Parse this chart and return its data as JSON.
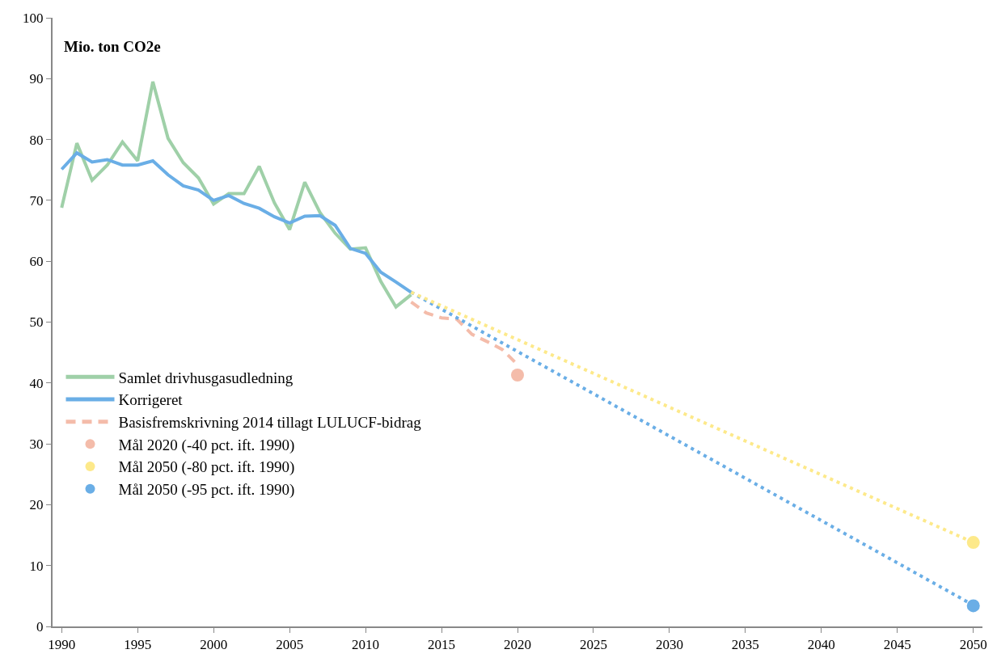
{
  "chart_data": {
    "type": "line",
    "ylabel": "Mio. ton CO2e",
    "xlim": [
      1989.4,
      2050.6
    ],
    "ylim": [
      0,
      100
    ],
    "xticks": [
      1990,
      1995,
      2000,
      2005,
      2010,
      2015,
      2020,
      2025,
      2030,
      2035,
      2040,
      2045,
      2050
    ],
    "yticks": [
      0,
      10,
      20,
      30,
      40,
      50,
      60,
      70,
      80,
      90,
      100
    ],
    "legend": "bottom left",
    "series": [
      {
        "name": "Samlet drivhusgasudledning",
        "line_style": "solid",
        "color": "#9fd0a8",
        "x": [
          1990,
          1991,
          1992,
          1993,
          1994,
          1995,
          1996,
          1997,
          1998,
          1999,
          2000,
          2001,
          2002,
          2003,
          2004,
          2005,
          2006,
          2007,
          2008,
          2009,
          2010,
          2011,
          2012,
          2013
        ],
        "values": [
          68.8,
          79.4,
          73.3,
          75.8,
          79.6,
          76.5,
          89.5,
          80.2,
          76.2,
          73.7,
          69.4,
          71.1,
          71.1,
          75.6,
          69.6,
          65.2,
          73.0,
          68.0,
          64.6,
          62.0,
          62.2,
          56.7,
          52.5,
          54.5
        ]
      },
      {
        "name": "Korrigeret",
        "line_style": "solid",
        "color": "#6aaee6",
        "x": [
          1990,
          1991,
          1992,
          1993,
          1994,
          1995,
          1996,
          1997,
          1998,
          1999,
          2000,
          2001,
          2002,
          2003,
          2004,
          2005,
          2006,
          2007,
          2008,
          2009,
          2010,
          2011,
          2012,
          2013
        ],
        "values": [
          75.1,
          77.8,
          76.3,
          76.7,
          75.8,
          75.8,
          76.5,
          74.2,
          72.4,
          71.7,
          70.0,
          70.8,
          69.5,
          68.7,
          67.3,
          66.3,
          67.4,
          67.5,
          65.9,
          62.1,
          61.3,
          58.2,
          56.6,
          54.9
        ]
      },
      {
        "name": "Basisfremskrivning 2014 tillagt LULUCF-bidrag",
        "type": "line",
        "line_style": "dashed",
        "color": "#f4bcaa",
        "x": [
          2013,
          2014,
          2015,
          2016,
          2017,
          2018,
          2019,
          2020
        ],
        "values": [
          53.3,
          51.5,
          50.7,
          50.5,
          48.0,
          46.8,
          45.5,
          43.0
        ]
      },
      {
        "type": "line",
        "line_style": "dotted",
        "color": "#6aaee6",
        "x": [
          2013,
          2050
        ],
        "values": [
          54.9,
          3.5
        ]
      },
      {
        "type": "line",
        "line_style": "dotted",
        "color": "#fde98a",
        "x": [
          2013,
          2050
        ],
        "values": [
          54.9,
          13.8
        ]
      },
      {
        "name": "Mål 2020 (-40 pct. ift. 1990)",
        "type": "scatter",
        "marker": "circle",
        "color": "#f4bcaa",
        "x": [
          2020
        ],
        "values": [
          41.3
        ]
      },
      {
        "name": "Mål 2050 (-80 pct. ift. 1990)",
        "type": "scatter",
        "marker": "circle",
        "color": "#fde98a",
        "x": [
          2050
        ],
        "values": [
          13.8
        ]
      },
      {
        "name": "Mål 2050 (-95 pct. ift. 1990)",
        "type": "scatter",
        "marker": "circle",
        "color": "#6aaee6",
        "x": [
          2050
        ],
        "values": [
          3.4
        ]
      }
    ]
  }
}
